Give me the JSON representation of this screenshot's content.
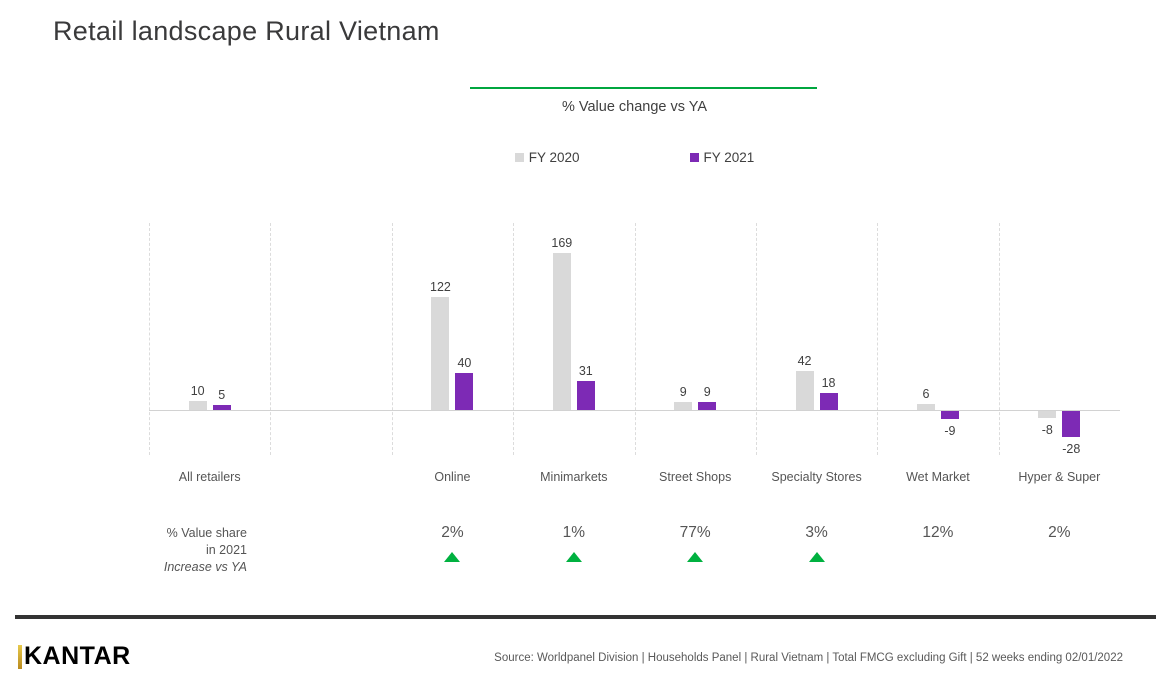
{
  "page": {
    "title": "Retail landscape Rural Vietnam",
    "share_note": {
      "line1": "% Value share",
      "line2": "in 2021",
      "line3": "Increase vs YA"
    },
    "footer": {
      "logo": "KANTAR",
      "source": "Source: Worldpanel Division | Households Panel | Rural Vietnam | Total FMCG excluding Gift | 52 weeks ending 02/01/2022"
    },
    "colors": {
      "accent_green": "#00b140",
      "rule_green": "#00a63f",
      "divider_dark": "#333333",
      "logo_gold_top": "#e7c94b",
      "logo_gold_bottom": "#b98a1e"
    }
  },
  "chart_data": {
    "type": "bar",
    "title": "% Value change vs YA",
    "categories": [
      "All retailers",
      "",
      "Online",
      "Minimarkets",
      "Street Shops",
      "Specialty Stores",
      "Wet Market",
      "Hyper & Super"
    ],
    "series": [
      {
        "name": "FY 2020",
        "color": "#d9d9d9",
        "values": [
          10,
          null,
          122,
          169,
          9,
          42,
          6,
          -8
        ]
      },
      {
        "name": "FY 2021",
        "color": "#7d2ab5",
        "values": [
          5,
          null,
          40,
          31,
          9,
          18,
          -9,
          -28
        ]
      }
    ],
    "value_share_2021": [
      null,
      null,
      "2%",
      "1%",
      "77%",
      "3%",
      "12%",
      "2%"
    ],
    "increase_flags": [
      false,
      false,
      true,
      true,
      true,
      true,
      false,
      false
    ],
    "ylim": [
      -48,
      201
    ],
    "grid": "vertical-dashed",
    "legend_position": "top",
    "data_labels": true
  }
}
